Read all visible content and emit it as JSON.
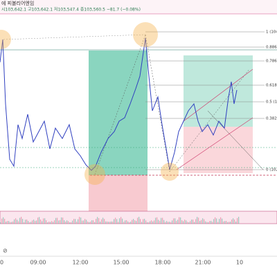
{
  "header": {
    "title": "에 피볼리어엔임",
    "ohlc": "시103,642.1 고103,642.1 저103,547.4 종103,560.5 −81.7 (−0.08%)"
  },
  "fib_labels": [
    "1 (104",
    "0.886",
    "0.786",
    "0.618",
    "0.5 (1",
    "0.382",
    "0 (102"
  ],
  "time_labels": [
    "0",
    "09:00",
    "12:00",
    "15:00",
    "18:00",
    "21:00",
    "10"
  ]
}
